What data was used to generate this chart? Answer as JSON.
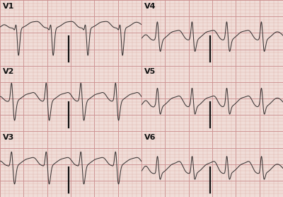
{
  "bg_color": "#f0ddd8",
  "grid_minor_color": "#ddb0aa",
  "grid_major_color": "#cc9090",
  "ecg_color": "#3a3535",
  "ecg_linewidth": 0.75,
  "label_color": "#111111",
  "label_fontsize": 8,
  "marker_color": "#111111",
  "rows": 3,
  "cols": 2,
  "labels": [
    [
      "V1",
      "V4"
    ],
    [
      "V2",
      "V5"
    ],
    [
      "V3",
      "V6"
    ]
  ],
  "figsize": [
    4.0,
    2.78
  ],
  "dpi": 100,
  "ecg_styles": [
    [
      "V1",
      "V4"
    ],
    [
      "V2",
      "V5"
    ],
    [
      "V3",
      "V6"
    ]
  ]
}
